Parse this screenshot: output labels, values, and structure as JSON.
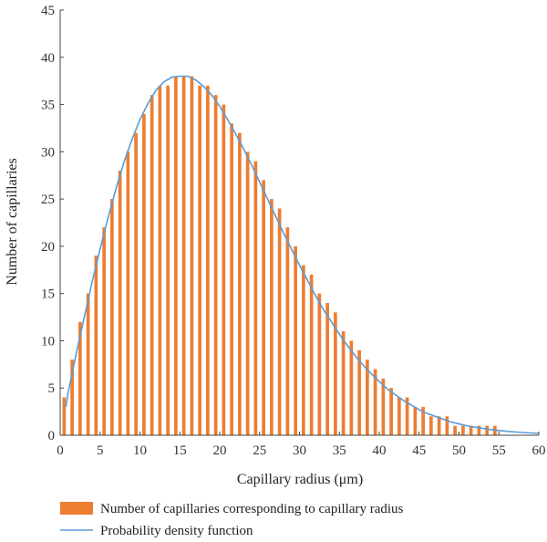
{
  "chart_data": {
    "type": "bar",
    "xlabel": "Capillary radius (μm)",
    "ylabel": "Number of capillaries",
    "xlim": [
      0,
      60
    ],
    "ylim": [
      0,
      45
    ],
    "xticks": [
      0,
      5,
      10,
      15,
      20,
      25,
      30,
      35,
      40,
      45,
      50,
      55,
      60
    ],
    "yticks": [
      0,
      5,
      10,
      15,
      20,
      25,
      30,
      35,
      40,
      45
    ],
    "grid": false,
    "legend_position": "bottom",
    "series": [
      {
        "name": "Number of capillaries corresponding to capillary radius",
        "type": "bar",
        "color": "#ED7D31",
        "x": [
          0.5,
          1.5,
          2.5,
          3.5,
          4.5,
          5.5,
          6.5,
          7.5,
          8.5,
          9.5,
          10.5,
          11.5,
          12.5,
          13.5,
          14.5,
          15.5,
          16.5,
          17.5,
          18.5,
          19.5,
          20.5,
          21.5,
          22.5,
          23.5,
          24.5,
          25.5,
          26.5,
          27.5,
          28.5,
          29.5,
          30.5,
          31.5,
          32.5,
          33.5,
          34.5,
          35.5,
          36.5,
          37.5,
          38.5,
          39.5,
          40.5,
          41.5,
          42.5,
          43.5,
          44.5,
          45.5,
          46.5,
          47.5,
          48.5,
          49.5,
          50.5,
          51.5,
          52.5,
          53.5,
          54.5
        ],
        "values": [
          4,
          8,
          12,
          15,
          19,
          22,
          25,
          28,
          30,
          32,
          34,
          36,
          37,
          37,
          38,
          38,
          38,
          37,
          37,
          36,
          35,
          33,
          32,
          30,
          29,
          27,
          25,
          24,
          22,
          20,
          18,
          17,
          15,
          14,
          13,
          11,
          10,
          9,
          8,
          7,
          6,
          5,
          4,
          4,
          3,
          3,
          2,
          2,
          2,
          1,
          1,
          1,
          1,
          1,
          1
        ]
      },
      {
        "name": "Probability density function",
        "type": "line",
        "color": "#5B9BD5",
        "x": [
          0.7,
          1,
          2,
          3,
          4,
          5,
          6,
          7,
          8,
          9,
          10,
          11,
          12,
          13,
          14,
          15,
          16,
          17,
          18,
          19,
          20,
          21,
          22,
          23,
          24,
          25,
          26,
          27,
          28,
          29,
          30,
          31,
          32,
          33,
          34,
          35,
          36,
          37,
          38,
          39,
          40,
          41,
          42,
          43,
          44,
          45,
          46,
          47,
          48,
          49,
          50,
          51,
          52,
          53,
          54,
          55,
          56,
          57,
          58,
          59,
          60
        ],
        "values": [
          3.0,
          4.5,
          8.6,
          12.4,
          16.2,
          19.7,
          23.0,
          26.1,
          28.9,
          31.3,
          33.4,
          35.1,
          36.5,
          37.4,
          37.9,
          38.0,
          38.0,
          37.6,
          36.9,
          36.0,
          34.8,
          33.4,
          31.9,
          30.3,
          28.6,
          26.8,
          25.0,
          23.2,
          21.4,
          19.7,
          18.0,
          16.4,
          14.8,
          13.3,
          12.0,
          10.7,
          9.5,
          8.4,
          7.4,
          6.5,
          5.7,
          4.9,
          4.3,
          3.7,
          3.2,
          2.7,
          2.3,
          2.0,
          1.7,
          1.4,
          1.2,
          1.0,
          0.85,
          0.72,
          0.6,
          0.5,
          0.42,
          0.35,
          0.29,
          0.24,
          0.2
        ]
      }
    ]
  }
}
